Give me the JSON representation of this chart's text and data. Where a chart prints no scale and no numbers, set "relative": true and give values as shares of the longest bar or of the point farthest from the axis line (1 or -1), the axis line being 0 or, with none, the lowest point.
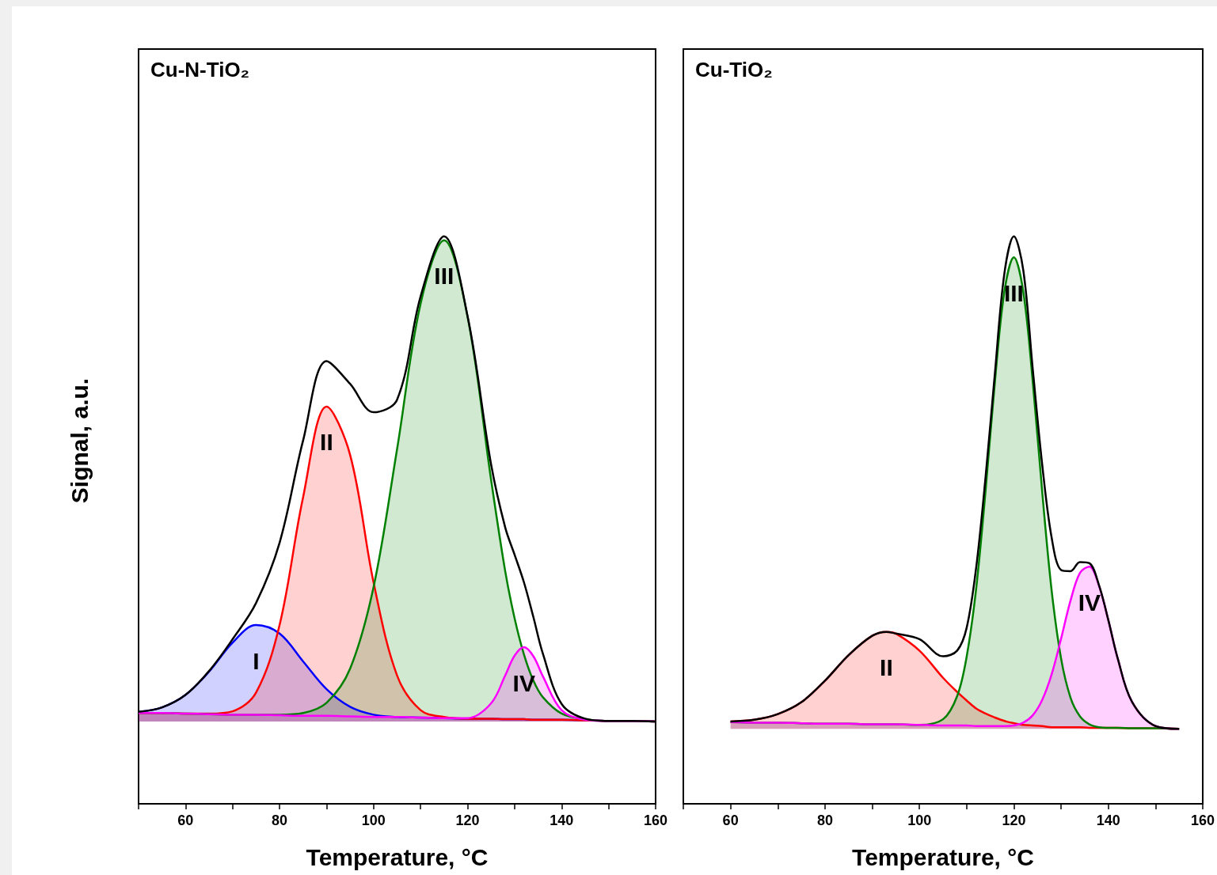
{
  "chart_data": [
    {
      "type": "area",
      "title": "Cu-N-TiO₂",
      "xlabel": "Temperature, °C",
      "ylabel": "Signal, a.u.",
      "relative": true,
      "tick_labels": "x",
      "xlim": [
        50,
        160
      ],
      "xticks": [
        {
          "value": 50,
          "label": null
        },
        60,
        {
          "value": 70,
          "label": null
        },
        80,
        {
          "value": 90,
          "label": null
        },
        100,
        {
          "value": 110,
          "label": null
        },
        120,
        {
          "value": 130,
          "label": null
        },
        140,
        {
          "value": 150,
          "label": null
        },
        160
      ],
      "x": [
        50,
        55,
        60,
        65,
        70,
        75,
        80,
        85,
        90,
        95,
        100,
        105,
        110,
        115,
        120,
        125,
        128,
        130,
        132,
        134,
        136,
        140,
        145,
        150,
        155,
        160
      ],
      "series": [
        {
          "color": "#0000ff",
          "values": [
            0.162,
            0.17,
            0.192,
            0.233,
            0.284,
            0.315,
            0.3,
            0.251,
            0.202,
            0.171,
            0.157,
            0.153,
            0.152,
            0.151,
            0.15,
            0.15,
            0.149,
            0.149,
            0.149,
            0.148,
            0.148,
            0.148,
            0.147,
            0.146,
            0.146,
            0.145
          ]
        },
        {
          "color": "#ff0000",
          "values": [
            0.16,
            0.16,
            0.159,
            0.159,
            0.163,
            0.196,
            0.315,
            0.54,
            0.7,
            0.615,
            0.39,
            0.226,
            0.165,
            0.153,
            0.15,
            0.15,
            0.149,
            0.149,
            0.149,
            0.148,
            0.148,
            0.148,
            0.147,
            0.146,
            0.146,
            0.145
          ]
        },
        {
          "color": "#008000",
          "values": [
            0.16,
            0.16,
            0.159,
            0.158,
            0.157,
            0.157,
            0.157,
            0.16,
            0.178,
            0.238,
            0.382,
            0.625,
            0.881,
            0.993,
            0.858,
            0.571,
            0.41,
            0.327,
            0.263,
            0.217,
            0.188,
            0.159,
            0.149,
            0.146,
            0.146,
            0.145
          ]
        },
        {
          "color": "#ff00ff",
          "values": [
            0.16,
            0.16,
            0.159,
            0.158,
            0.157,
            0.157,
            0.156,
            0.155,
            0.155,
            0.154,
            0.153,
            0.153,
            0.152,
            0.151,
            0.151,
            0.177,
            0.226,
            0.261,
            0.276,
            0.26,
            0.225,
            0.165,
            0.148,
            0.146,
            0.146,
            0.145
          ]
        },
        {
          "type": "line",
          "color": "#000000",
          "values": [
            0.162,
            0.17,
            0.192,
            0.234,
            0.29,
            0.354,
            0.46,
            0.64,
            0.78,
            0.74,
            0.69,
            0.712,
            0.894,
            1,
            0.859,
            0.598,
            0.487,
            0.439,
            0.39,
            0.329,
            0.265,
            0.176,
            0.15,
            0.146,
            0.146,
            0.145
          ]
        }
      ],
      "annotations": [
        {
          "text": "I",
          "x": 75,
          "y": 0.315
        },
        {
          "text": "II",
          "x": 90,
          "y": 0.7
        },
        {
          "text": "III",
          "x": 115,
          "y": 0.993
        },
        {
          "text": "IV",
          "x": 132,
          "y": 0.276
        }
      ]
    },
    {
      "type": "area",
      "title": "Cu-TiO₂",
      "xlabel": "Temperature, °C",
      "relative": true,
      "tick_labels": "x",
      "xlim": [
        50,
        160
      ],
      "xticks": [
        {
          "value": 50,
          "label": null
        },
        60,
        {
          "value": 70,
          "label": null
        },
        80,
        {
          "value": 90,
          "label": null
        },
        100,
        {
          "value": 110,
          "label": null
        },
        120,
        {
          "value": 130,
          "label": null
        },
        140,
        {
          "value": 150,
          "label": null
        },
        160
      ],
      "x": [
        60,
        65,
        70,
        75,
        80,
        85,
        90,
        93,
        95,
        100,
        105,
        108,
        110,
        112,
        114,
        116,
        118,
        120,
        122,
        124,
        126,
        128,
        130,
        132,
        134,
        136,
        138,
        140,
        142,
        145,
        150,
        155
      ],
      "series": [
        {
          "color": "#ff0000",
          "values": [
            0.145,
            0.148,
            0.158,
            0.179,
            0.217,
            0.262,
            0.296,
            0.303,
            0.3,
            0.27,
            0.222,
            0.197,
            0.182,
            0.168,
            0.159,
            0.152,
            0.146,
            0.142,
            0.139,
            0.138,
            0.137,
            0.135,
            0.135,
            0.135,
            0.135,
            0.134,
            0.134,
            0.134,
            0.134,
            0.133,
            0.133,
            0.132
          ]
        },
        {
          "color": "#008000",
          "values": [
            0.144,
            0.143,
            0.143,
            0.142,
            0.141,
            0.141,
            0.14,
            0.14,
            0.14,
            0.139,
            0.149,
            0.19,
            0.259,
            0.378,
            0.551,
            0.745,
            0.903,
            0.963,
            0.902,
            0.744,
            0.55,
            0.376,
            0.256,
            0.187,
            0.154,
            0.14,
            0.135,
            0.134,
            0.134,
            0.133,
            0.133,
            0.132
          ]
        },
        {
          "color": "#ff00ff",
          "values": [
            0.144,
            0.143,
            0.143,
            0.142,
            0.141,
            0.141,
            0.14,
            0.14,
            0.14,
            0.139,
            0.138,
            0.138,
            0.138,
            0.137,
            0.137,
            0.137,
            0.137,
            0.138,
            0.143,
            0.156,
            0.183,
            0.228,
            0.291,
            0.358,
            0.407,
            0.418,
            0.385,
            0.324,
            0.256,
            0.18,
            0.137,
            0.132
          ]
        },
        {
          "type": "line",
          "color": "#000000",
          "values": [
            0.145,
            0.148,
            0.158,
            0.179,
            0.217,
            0.262,
            0.296,
            0.303,
            0.3,
            0.29,
            0.26,
            0.27,
            0.31,
            0.415,
            0.575,
            0.76,
            0.935,
            1,
            0.94,
            0.766,
            0.598,
            0.469,
            0.412,
            0.41,
            0.426,
            0.424,
            0.386,
            0.324,
            0.256,
            0.18,
            0.137,
            0.132
          ]
        }
      ],
      "annotations": [
        {
          "text": "II",
          "x": 93,
          "y": 0.303
        },
        {
          "text": "III",
          "x": 120,
          "y": 0.963
        },
        {
          "text": "IV",
          "x": 136,
          "y": 0.418
        }
      ]
    }
  ]
}
